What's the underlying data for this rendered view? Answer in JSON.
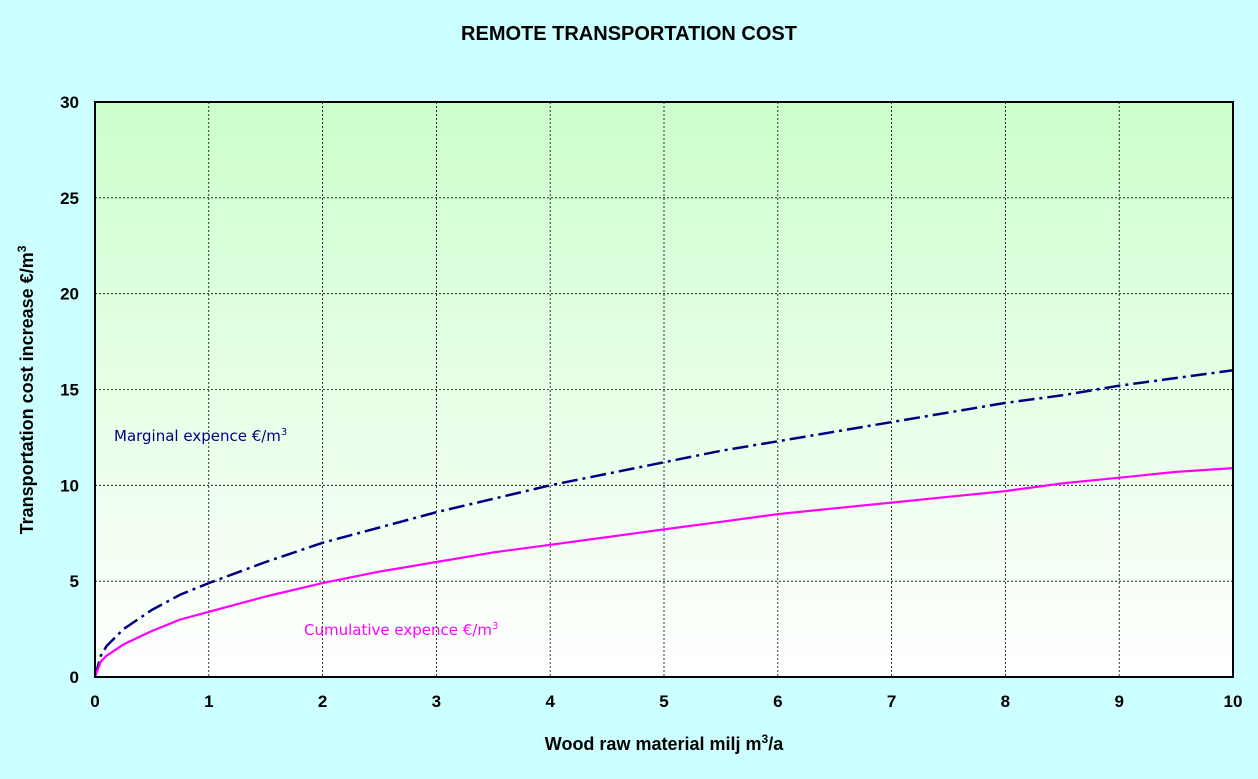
{
  "chart_data": {
    "type": "line",
    "title": "REMOTE TRANSPORTATION COST",
    "xlabel": {
      "main": "Wood raw material milj m",
      "sup": "3",
      "suffix": "/a"
    },
    "ylabel": {
      "main": "Transportation  cost increase  €/m",
      "sup": "3"
    },
    "xlim": [
      0,
      10
    ],
    "ylim": [
      0,
      30
    ],
    "xticks": [
      0,
      1,
      2,
      3,
      4,
      5,
      6,
      7,
      8,
      9,
      10
    ],
    "yticks": [
      0,
      5,
      10,
      15,
      20,
      25,
      30
    ],
    "grid": true,
    "x": [
      0.05,
      0.1,
      0.25,
      0.5,
      0.75,
      1,
      1.5,
      2,
      2.5,
      3,
      3.5,
      4,
      4.5,
      5,
      5.5,
      6,
      6.5,
      7,
      7.5,
      8,
      8.5,
      9,
      9.5,
      10
    ],
    "series": [
      {
        "name": "Marginal expence €/m",
        "name_sup": "3",
        "color": "#000080",
        "dash": "dashdot",
        "values": [
          1.1,
          1.6,
          2.5,
          3.5,
          4.3,
          4.9,
          6.0,
          7.0,
          7.8,
          8.6,
          9.3,
          10.0,
          10.6,
          11.2,
          11.8,
          12.3,
          12.8,
          13.3,
          13.8,
          14.3,
          14.7,
          15.2,
          15.6,
          16.0
        ]
      },
      {
        "name": "Cumulative expence €/m",
        "name_sup": "3",
        "color": "#ff00ff",
        "dash": "solid",
        "values": [
          0.8,
          1.1,
          1.7,
          2.4,
          3.0,
          3.4,
          4.2,
          4.9,
          5.5,
          6.0,
          6.5,
          6.9,
          7.3,
          7.7,
          8.1,
          8.5,
          8.8,
          9.1,
          9.4,
          9.7,
          10.1,
          10.4,
          10.7,
          10.9
        ]
      }
    ]
  }
}
